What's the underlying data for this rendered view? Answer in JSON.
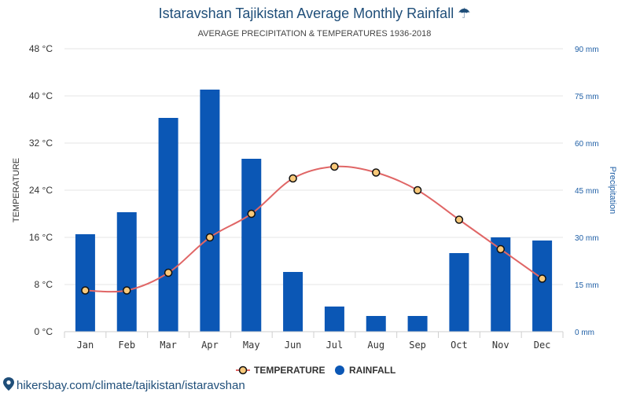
{
  "header": {
    "title": "Istaravshan Tajikistan Average Monthly Rainfall ☂",
    "subtitle": "AVERAGE PRECIPITATION & TEMPERATURES 1936-2018"
  },
  "footer": {
    "source_text": "hikersbay.com/climate/tajikistan/istaravshan"
  },
  "chart_data": {
    "type": "bar",
    "categories": [
      "Jan",
      "Feb",
      "Mar",
      "Apr",
      "May",
      "Jun",
      "Jul",
      "Aug",
      "Sep",
      "Oct",
      "Nov",
      "Dec"
    ],
    "y_left": {
      "label": "TEMPERATURE",
      "min": 0,
      "max": 48,
      "ticks": [
        0,
        8,
        16,
        24,
        32,
        40,
        48
      ],
      "tick_labels": [
        "0 °C",
        "8 °C",
        "16 °C",
        "24 °C",
        "32 °C",
        "40 °C",
        "48 °C"
      ]
    },
    "y_right": {
      "label": "Precipitation",
      "min": 0,
      "max": 90,
      "ticks": [
        0,
        15,
        30,
        45,
        60,
        75,
        90
      ],
      "tick_labels": [
        "0 mm",
        "15 mm",
        "30 mm",
        "45 mm",
        "60 mm",
        "75 mm",
        "90 mm"
      ]
    },
    "series": [
      {
        "name": "RAINFALL",
        "kind": "bar",
        "axis": "right",
        "color": "#0b57b5",
        "values": [
          31,
          38,
          68,
          77,
          55,
          19,
          8,
          5,
          5,
          25,
          30,
          29
        ]
      },
      {
        "name": "TEMPERATURE",
        "kind": "line",
        "axis": "left",
        "color": "#e06666",
        "marker_fill": "#f9c97a",
        "values": [
          7,
          7,
          10,
          16,
          20,
          26,
          28,
          27,
          24,
          19,
          14,
          9
        ]
      }
    ],
    "grid": true,
    "legend": {
      "position": "bottom-center"
    }
  }
}
